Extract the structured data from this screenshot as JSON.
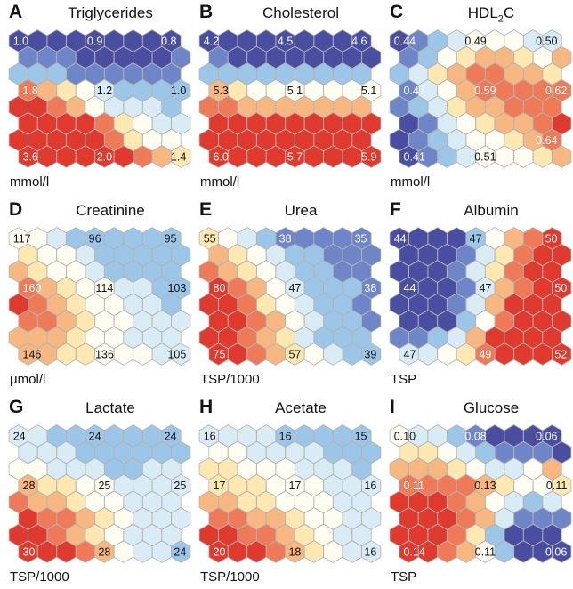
{
  "colors": {
    "scale": [
      "#4a4ea0",
      "#6e86c8",
      "#9cc6e8",
      "#d9ecf6",
      "#fffdf2",
      "#fde8b2",
      "#f7b780",
      "#ee7a58",
      "#e03a2e"
    ],
    "hex_stroke": "#b3b3b3"
  },
  "chart_data": [
    {
      "type": "heatmap",
      "letter": "A",
      "title": "Triglycerides",
      "unit": "mmol/l",
      "cols": 9,
      "rows": 8,
      "labels": [
        {
          "pos": "tl",
          "value": "1.0"
        },
        {
          "pos": "tc",
          "value": "0.9"
        },
        {
          "pos": "tr",
          "value": "0.8"
        },
        {
          "pos": "ml",
          "value": "1.8"
        },
        {
          "pos": "mc",
          "value": "1.2"
        },
        {
          "pos": "mr",
          "value": "1.0"
        },
        {
          "pos": "bl",
          "value": "3.6"
        },
        {
          "pos": "bc",
          "value": "2.0"
        },
        {
          "pos": "br",
          "value": "1.4"
        }
      ],
      "grid": [
        [
          0,
          0,
          0,
          0,
          0,
          0,
          0,
          0,
          0
        ],
        [
          1,
          1,
          1,
          0,
          0,
          0,
          0,
          0,
          1
        ],
        [
          2,
          2,
          2,
          1,
          1,
          1,
          1,
          1,
          1
        ],
        [
          7,
          6,
          5,
          4,
          3,
          2,
          2,
          2,
          2
        ],
        [
          8,
          8,
          7,
          6,
          4,
          3,
          3,
          3,
          2
        ],
        [
          8,
          8,
          8,
          8,
          7,
          5,
          4,
          3,
          3
        ],
        [
          8,
          8,
          8,
          8,
          8,
          7,
          5,
          4,
          4
        ],
        [
          8,
          8,
          8,
          8,
          8,
          8,
          7,
          6,
          5
        ]
      ]
    },
    {
      "type": "heatmap",
      "letter": "B",
      "title": "Cholesterol",
      "unit": "mmol/l",
      "cols": 9,
      "rows": 8,
      "labels": [
        {
          "pos": "tl",
          "value": "4.2"
        },
        {
          "pos": "tc",
          "value": "4.5"
        },
        {
          "pos": "tr",
          "value": "4.6"
        },
        {
          "pos": "ml",
          "value": "5.3"
        },
        {
          "pos": "mc",
          "value": "5.1"
        },
        {
          "pos": "mr",
          "value": "5.1"
        },
        {
          "pos": "bl",
          "value": "6.0"
        },
        {
          "pos": "bc",
          "value": "5.7"
        },
        {
          "pos": "br",
          "value": "5.9"
        }
      ],
      "grid": [
        [
          0,
          0,
          0,
          0,
          0,
          0,
          0,
          0,
          0
        ],
        [
          1,
          0,
          0,
          0,
          0,
          0,
          0,
          0,
          0
        ],
        [
          2,
          2,
          2,
          2,
          2,
          2,
          2,
          2,
          2
        ],
        [
          6,
          5,
          4,
          4,
          4,
          4,
          4,
          4,
          4
        ],
        [
          7,
          7,
          6,
          6,
          6,
          6,
          6,
          6,
          6
        ],
        [
          8,
          8,
          8,
          8,
          8,
          8,
          8,
          8,
          8
        ],
        [
          8,
          8,
          8,
          8,
          8,
          8,
          8,
          8,
          8
        ],
        [
          8,
          8,
          8,
          8,
          8,
          8,
          8,
          8,
          8
        ]
      ]
    },
    {
      "type": "heatmap",
      "letter": "C",
      "title": "HDL",
      "title_sub": "2",
      "title_after": "C",
      "unit": "mmol/l",
      "cols": 9,
      "rows": 8,
      "labels": [
        {
          "pos": "tl",
          "value": "0.44"
        },
        {
          "pos": "tc",
          "value": "0.49"
        },
        {
          "pos": "tr",
          "value": "0.50"
        },
        {
          "pos": "ml",
          "value": "0.47"
        },
        {
          "pos": "mc",
          "value": "0.59"
        },
        {
          "pos": "mr",
          "value": "0.62"
        },
        {
          "pos": "bl",
          "value": "0.41"
        },
        {
          "pos": "br2",
          "value": "0.64"
        },
        {
          "pos": "bc",
          "value": "0.51"
        }
      ],
      "grid": [
        [
          0,
          1,
          2,
          3,
          4,
          4,
          4,
          3,
          3
        ],
        [
          1,
          2,
          4,
          5,
          6,
          6,
          5,
          4,
          6
        ],
        [
          2,
          3,
          5,
          6,
          7,
          7,
          6,
          6,
          5
        ],
        [
          1,
          3,
          4,
          6,
          7,
          7,
          7,
          7,
          7
        ],
        [
          1,
          2,
          3,
          5,
          6,
          6,
          7,
          7,
          7
        ],
        [
          0,
          1,
          3,
          4,
          5,
          6,
          6,
          7,
          8
        ],
        [
          0,
          1,
          2,
          3,
          4,
          4,
          5,
          6,
          7
        ],
        [
          0,
          1,
          2,
          3,
          4,
          4,
          4,
          5,
          6
        ]
      ]
    },
    {
      "type": "heatmap",
      "letter": "D",
      "title": "Creatinine",
      "unit": "μmol/l",
      "cols": 9,
      "rows": 8,
      "labels": [
        {
          "pos": "tl",
          "value": "117"
        },
        {
          "pos": "tc",
          "value": "96"
        },
        {
          "pos": "tr",
          "value": "95"
        },
        {
          "pos": "ml",
          "value": "160"
        },
        {
          "pos": "mc",
          "value": "114"
        },
        {
          "pos": "mr",
          "value": "103"
        },
        {
          "pos": "bl",
          "value": "146"
        },
        {
          "pos": "bc",
          "value": "136"
        },
        {
          "pos": "br",
          "value": "105"
        }
      ],
      "grid": [
        [
          4,
          4,
          3,
          2,
          2,
          2,
          2,
          2,
          2
        ],
        [
          5,
          4,
          4,
          3,
          2,
          2,
          2,
          2,
          2
        ],
        [
          6,
          5,
          4,
          4,
          3,
          2,
          2,
          2,
          2
        ],
        [
          7,
          6,
          5,
          4,
          4,
          3,
          3,
          2,
          2
        ],
        [
          8,
          7,
          6,
          5,
          4,
          4,
          3,
          3,
          2
        ],
        [
          7,
          7,
          6,
          5,
          4,
          4,
          3,
          3,
          3
        ],
        [
          6,
          6,
          6,
          5,
          4,
          4,
          3,
          3,
          3
        ],
        [
          6,
          6,
          5,
          5,
          4,
          4,
          4,
          3,
          3
        ]
      ]
    },
    {
      "type": "heatmap",
      "letter": "E",
      "title": "Urea",
      "unit": "TSP/1000",
      "cols": 9,
      "rows": 8,
      "labels": [
        {
          "pos": "tl",
          "value": "55"
        },
        {
          "pos": "tc",
          "value": "38"
        },
        {
          "pos": "tr",
          "value": "35"
        },
        {
          "pos": "ml",
          "value": "80"
        },
        {
          "pos": "mc",
          "value": "47"
        },
        {
          "pos": "mr",
          "value": "38"
        },
        {
          "pos": "bl",
          "value": "75"
        },
        {
          "pos": "bc",
          "value": "57"
        },
        {
          "pos": "br",
          "value": "39"
        }
      ],
      "grid": [
        [
          5,
          4,
          3,
          2,
          1,
          1,
          1,
          1,
          1
        ],
        [
          6,
          5,
          4,
          3,
          2,
          2,
          1,
          1,
          1
        ],
        [
          7,
          6,
          5,
          4,
          3,
          2,
          2,
          1,
          1
        ],
        [
          8,
          7,
          6,
          4,
          3,
          2,
          2,
          2,
          1
        ],
        [
          8,
          8,
          7,
          5,
          4,
          3,
          2,
          2,
          1
        ],
        [
          8,
          8,
          7,
          6,
          4,
          3,
          2,
          2,
          1
        ],
        [
          8,
          8,
          7,
          6,
          5,
          3,
          2,
          2,
          2
        ],
        [
          8,
          8,
          7,
          6,
          5,
          4,
          3,
          2,
          2
        ]
      ]
    },
    {
      "type": "heatmap",
      "letter": "F",
      "title": "Albumin",
      "unit": "TSP",
      "cols": 9,
      "rows": 8,
      "labels": [
        {
          "pos": "tl",
          "value": "44"
        },
        {
          "pos": "tc",
          "value": "47"
        },
        {
          "pos": "tr",
          "value": "50"
        },
        {
          "pos": "ml",
          "value": "44"
        },
        {
          "pos": "mc",
          "value": "47"
        },
        {
          "pos": "mr",
          "value": "50"
        },
        {
          "pos": "bl",
          "value": "47"
        },
        {
          "pos": "bc",
          "value": "49"
        },
        {
          "pos": "br",
          "value": "52"
        }
      ],
      "grid": [
        [
          0,
          0,
          0,
          0,
          2,
          4,
          6,
          7,
          8
        ],
        [
          0,
          0,
          0,
          1,
          3,
          5,
          7,
          8,
          8
        ],
        [
          0,
          0,
          0,
          1,
          3,
          5,
          7,
          8,
          8
        ],
        [
          0,
          0,
          0,
          1,
          3,
          6,
          7,
          8,
          8
        ],
        [
          0,
          0,
          0,
          1,
          3,
          6,
          8,
          8,
          8
        ],
        [
          0,
          0,
          0,
          2,
          4,
          7,
          8,
          8,
          8
        ],
        [
          1,
          1,
          2,
          3,
          6,
          8,
          8,
          8,
          8
        ],
        [
          3,
          3,
          4,
          5,
          7,
          8,
          8,
          8,
          8
        ]
      ]
    },
    {
      "type": "heatmap",
      "letter": "G",
      "title": "Lactate",
      "unit": "TSP/1000",
      "cols": 9,
      "rows": 8,
      "labels": [
        {
          "pos": "tl",
          "value": "24"
        },
        {
          "pos": "tc",
          "value": "24"
        },
        {
          "pos": "tr",
          "value": "24"
        },
        {
          "pos": "ml",
          "value": "28"
        },
        {
          "pos": "mc",
          "value": "25"
        },
        {
          "pos": "mr",
          "value": "25"
        },
        {
          "pos": "bl",
          "value": "30"
        },
        {
          "pos": "bc",
          "value": "28"
        },
        {
          "pos": "br",
          "value": "24"
        }
      ],
      "grid": [
        [
          3,
          3,
          2,
          2,
          2,
          2,
          2,
          2,
          2
        ],
        [
          3,
          3,
          3,
          2,
          2,
          2,
          2,
          2,
          2
        ],
        [
          4,
          4,
          3,
          3,
          3,
          2,
          2,
          3,
          3
        ],
        [
          6,
          5,
          5,
          4,
          4,
          3,
          3,
          3,
          3
        ],
        [
          7,
          6,
          6,
          5,
          4,
          4,
          3,
          3,
          3
        ],
        [
          8,
          7,
          7,
          6,
          5,
          4,
          3,
          3,
          3
        ],
        [
          8,
          8,
          7,
          6,
          5,
          4,
          3,
          3,
          3
        ],
        [
          8,
          8,
          8,
          7,
          6,
          4,
          3,
          3,
          2
        ]
      ]
    },
    {
      "type": "heatmap",
      "letter": "H",
      "title": "Acetate",
      "unit": "TSP/1000",
      "cols": 9,
      "rows": 8,
      "labels": [
        {
          "pos": "tl",
          "value": "16"
        },
        {
          "pos": "tc",
          "value": "16"
        },
        {
          "pos": "tr",
          "value": "15"
        },
        {
          "pos": "ml",
          "value": "17"
        },
        {
          "pos": "mc",
          "value": "17"
        },
        {
          "pos": "mr",
          "value": "16"
        },
        {
          "pos": "bl",
          "value": "20"
        },
        {
          "pos": "bc",
          "value": "18"
        },
        {
          "pos": "br",
          "value": "16"
        }
      ],
      "grid": [
        [
          3,
          3,
          3,
          3,
          2,
          2,
          2,
          2,
          2
        ],
        [
          4,
          4,
          3,
          3,
          3,
          3,
          2,
          2,
          2
        ],
        [
          5,
          5,
          4,
          4,
          4,
          3,
          3,
          3,
          2
        ],
        [
          5,
          5,
          5,
          4,
          4,
          4,
          3,
          3,
          3
        ],
        [
          6,
          6,
          5,
          5,
          4,
          4,
          4,
          3,
          3
        ],
        [
          7,
          7,
          6,
          6,
          5,
          4,
          4,
          3,
          3
        ],
        [
          8,
          8,
          7,
          7,
          6,
          5,
          4,
          3,
          3
        ],
        [
          8,
          8,
          8,
          7,
          6,
          5,
          4,
          3,
          3
        ]
      ]
    },
    {
      "type": "heatmap",
      "letter": "I",
      "title": "Glucose",
      "unit": "TSP",
      "cols": 9,
      "rows": 8,
      "labels": [
        {
          "pos": "tl",
          "value": "0.10"
        },
        {
          "pos": "tc",
          "value": "0.08"
        },
        {
          "pos": "tr",
          "value": "0.06"
        },
        {
          "pos": "ml",
          "value": "0.11"
        },
        {
          "pos": "mc",
          "value": "0.13"
        },
        {
          "pos": "mr",
          "value": "0.11"
        },
        {
          "pos": "bl",
          "value": "0.14"
        },
        {
          "pos": "bc",
          "value": "0.11"
        },
        {
          "pos": "br",
          "value": "0.06"
        }
      ],
      "grid": [
        [
          4,
          3,
          3,
          2,
          1,
          0,
          0,
          0,
          0
        ],
        [
          5,
          5,
          4,
          3,
          2,
          1,
          1,
          1,
          0
        ],
        [
          6,
          6,
          6,
          5,
          4,
          3,
          3,
          4,
          6
        ],
        [
          7,
          7,
          7,
          7,
          6,
          5,
          4,
          4,
          5
        ],
        [
          8,
          8,
          8,
          7,
          6,
          4,
          3,
          2,
          3
        ],
        [
          8,
          8,
          8,
          7,
          6,
          3,
          1,
          1,
          1
        ],
        [
          8,
          8,
          8,
          7,
          5,
          2,
          0,
          0,
          0
        ],
        [
          8,
          8,
          7,
          6,
          4,
          2,
          0,
          0,
          0
        ]
      ]
    }
  ]
}
